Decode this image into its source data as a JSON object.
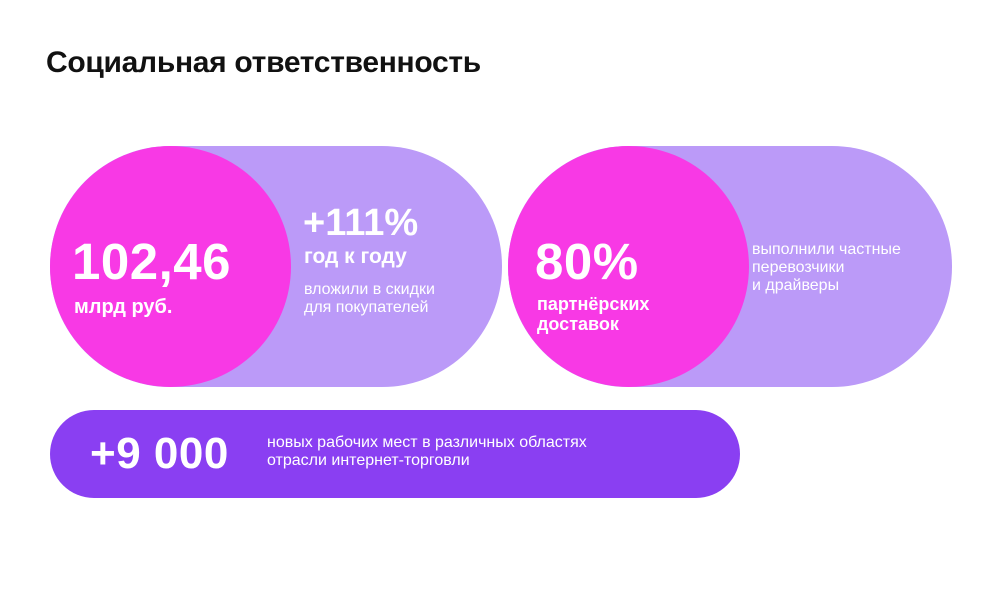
{
  "title": "Социальная ответственность",
  "card_discounts": {
    "value": "102,46",
    "unit": "млрд руб.",
    "growth": "+111%",
    "growth_label": "год к году",
    "description": "вложили в скидки\nдля покупателей"
  },
  "card_deliveries": {
    "value": "80%",
    "label": "партнёрских\nдоставок",
    "description": "выполнили частные\nперевозчики\nи драйверы"
  },
  "card_jobs": {
    "value": "+9 000",
    "description": "новых рабочих мест в различных областях\nотрасли интернет-торговли"
  },
  "colors": {
    "magenta": "#f839e5",
    "lavender": "#bb9af8",
    "purple": "#8a3ff2"
  }
}
